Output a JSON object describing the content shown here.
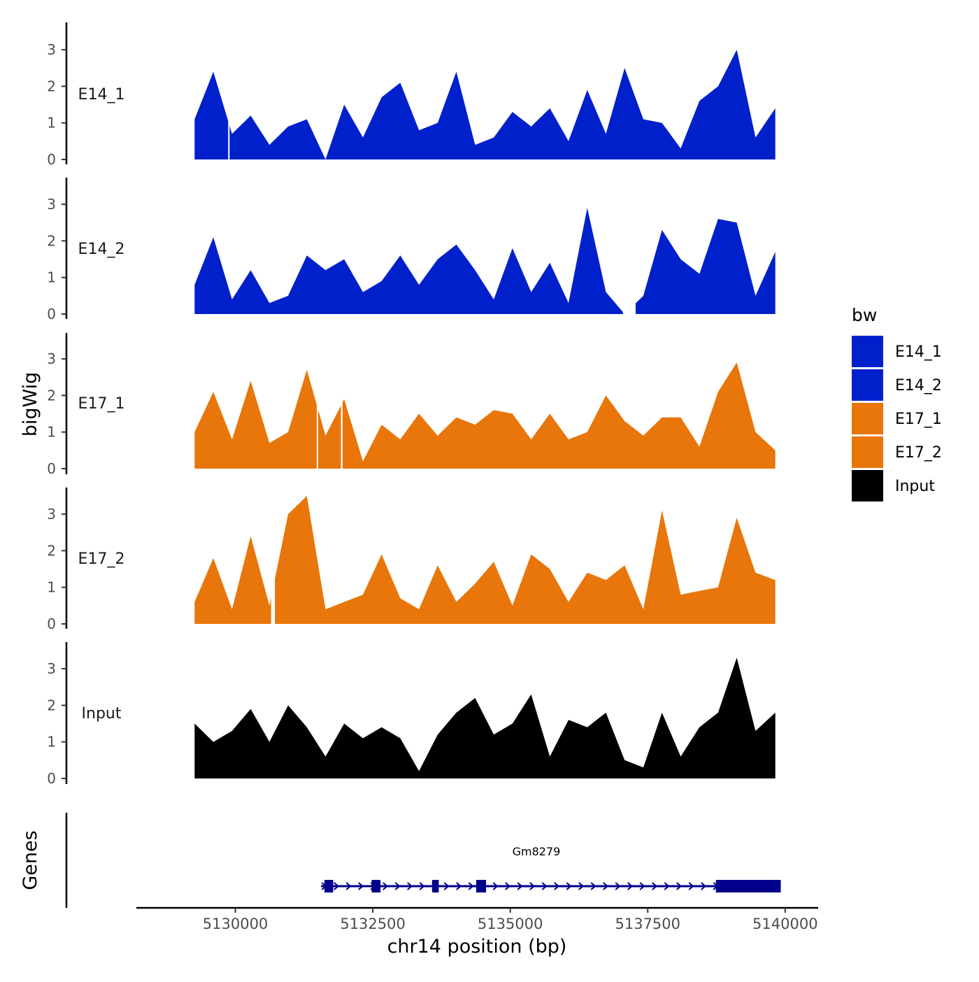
{
  "chart_data": {
    "type": "area",
    "title": "",
    "xlabel": "chr14 position (bp)",
    "ylabel": "bigWig",
    "genes_label": "Genes",
    "xlim": [
      5128200,
      5140600
    ],
    "x_ticks": [
      5130000,
      5132500,
      5135000,
      5137500,
      5140000
    ],
    "x_tick_labels": [
      "5130000",
      "5132500",
      "5135000",
      "5137500",
      "5140000"
    ],
    "ylim": [
      0,
      3.7
    ],
    "y_ticks": [
      0,
      1,
      2,
      3
    ],
    "y_tick_labels": [
      "0",
      "1",
      "2",
      "3"
    ],
    "legend": {
      "title": "bw",
      "position": "right",
      "items": [
        {
          "label": "E14_1",
          "color": "#0020cc"
        },
        {
          "label": "E14_2",
          "color": "#0020cc"
        },
        {
          "label": "E17_1",
          "color": "#e8760a"
        },
        {
          "label": "E17_2",
          "color": "#e8760a"
        },
        {
          "label": "Input",
          "color": "#000000"
        }
      ]
    },
    "x": [
      5129260,
      5129600,
      5129940,
      5130280,
      5130620,
      5130960,
      5131300,
      5131640,
      5131980,
      5132320,
      5132660,
      5133000,
      5133340,
      5133680,
      5134020,
      5134360,
      5134700,
      5135040,
      5135380,
      5135720,
      5136060,
      5136400,
      5136740,
      5137080,
      5137420,
      5137760,
      5138100,
      5138440,
      5138780,
      5139120,
      5139460,
      5139820
    ],
    "series": [
      {
        "name": "E14_1",
        "color": "#0020cc",
        "values": [
          1.1,
          2.4,
          0.7,
          1.2,
          0.4,
          0.9,
          1.1,
          0.0,
          1.5,
          0.6,
          1.7,
          2.1,
          0.8,
          1.0,
          2.4,
          0.4,
          0.6,
          1.3,
          0.9,
          1.4,
          0.5,
          1.9,
          0.7,
          2.5,
          1.1,
          1.0,
          0.3,
          1.6,
          2.0,
          3.0,
          0.6,
          1.4
        ],
        "gaps": [
          [
            5129870,
            5129890
          ]
        ]
      },
      {
        "name": "E14_2",
        "color": "#0020cc",
        "values": [
          0.8,
          2.1,
          0.4,
          1.2,
          0.3,
          0.5,
          1.6,
          1.2,
          1.5,
          0.6,
          0.9,
          1.6,
          0.8,
          1.5,
          1.9,
          1.2,
          0.4,
          1.8,
          0.6,
          1.4,
          0.3,
          2.9,
          0.6,
          0.0,
          0.5,
          2.3,
          1.5,
          1.1,
          2.6,
          2.5,
          0.5,
          1.7
        ],
        "gaps": [
          [
            5137050,
            5137280
          ]
        ]
      },
      {
        "name": "E17_1",
        "color": "#e8760a",
        "values": [
          1.0,
          2.1,
          0.8,
          2.4,
          0.7,
          1.0,
          2.7,
          0.9,
          1.9,
          0.2,
          1.2,
          0.8,
          1.5,
          0.9,
          1.4,
          1.2,
          1.6,
          1.5,
          0.8,
          1.5,
          0.8,
          1.0,
          2.0,
          1.3,
          0.9,
          1.4,
          1.4,
          0.6,
          2.1,
          2.9,
          1.0,
          0.5
        ],
        "gaps": [
          [
            5131480,
            5131500
          ],
          [
            5131920,
            5131950
          ]
        ]
      },
      {
        "name": "E17_2",
        "color": "#e8760a",
        "values": [
          0.6,
          1.8,
          0.4,
          2.4,
          0.5,
          3.0,
          3.5,
          0.4,
          0.6,
          0.8,
          1.9,
          0.7,
          0.4,
          1.6,
          0.6,
          1.1,
          1.7,
          0.5,
          1.9,
          1.5,
          0.6,
          1.4,
          1.2,
          1.6,
          0.4,
          3.1,
          0.8,
          0.9,
          1.0,
          2.9,
          1.4,
          1.2
        ],
        "gaps": [
          [
            5130650,
            5130720
          ]
        ]
      },
      {
        "name": "Input",
        "color": "#000000",
        "values": [
          1.5,
          1.0,
          1.3,
          1.9,
          1.0,
          2.0,
          1.4,
          0.6,
          1.5,
          1.1,
          1.4,
          1.1,
          0.2,
          1.2,
          1.8,
          2.2,
          1.2,
          1.5,
          2.3,
          0.6,
          1.6,
          1.4,
          1.8,
          0.5,
          0.3,
          1.8,
          0.6,
          1.4,
          1.8,
          3.3,
          1.3,
          1.8
        ],
        "gaps": []
      }
    ],
    "gene": {
      "name": "Gm8279",
      "start": 5131560,
      "end": 5139920,
      "strand": "+",
      "color": "#00008b",
      "exons": [
        [
          5131620,
          5131780
        ],
        [
          5132480,
          5132640
        ],
        [
          5133580,
          5133700
        ],
        [
          5134380,
          5134560
        ],
        [
          5138740,
          5139920
        ]
      ]
    }
  }
}
